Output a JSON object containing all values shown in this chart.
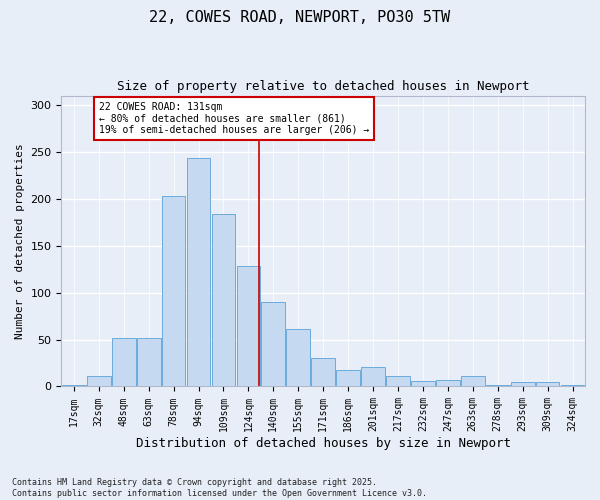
{
  "title": "22, COWES ROAD, NEWPORT, PO30 5TW",
  "subtitle": "Size of property relative to detached houses in Newport",
  "xlabel": "Distribution of detached houses by size in Newport",
  "ylabel": "Number of detached properties",
  "bar_color": "#c5d9f0",
  "bar_edge_color": "#6aabdd",
  "background_color": "#e8eef8",
  "grid_color": "#ffffff",
  "categories": [
    "17sqm",
    "32sqm",
    "48sqm",
    "63sqm",
    "78sqm",
    "94sqm",
    "109sqm",
    "124sqm",
    "140sqm",
    "155sqm",
    "171sqm",
    "186sqm",
    "201sqm",
    "217sqm",
    "232sqm",
    "247sqm",
    "263sqm",
    "278sqm",
    "293sqm",
    "309sqm",
    "324sqm"
  ],
  "bar_heights": [
    2,
    11,
    52,
    52,
    203,
    243,
    184,
    128,
    90,
    61,
    30,
    18,
    21,
    11,
    6,
    7,
    11,
    2,
    5,
    5,
    2
  ],
  "ylim": [
    0,
    310
  ],
  "yticks": [
    0,
    50,
    100,
    150,
    200,
    250,
    300
  ],
  "vline_color": "#cc0000",
  "annotation_text": "22 COWES ROAD: 131sqm\n← 80% of detached houses are smaller (861)\n19% of semi-detached houses are larger (206) →",
  "annotation_box_color": "#ffffff",
  "annotation_box_edge": "#cc0000",
  "footnote": "Contains HM Land Registry data © Crown copyright and database right 2025.\nContains public sector information licensed under the Open Government Licence v3.0.",
  "title_fontsize": 11,
  "subtitle_fontsize": 9,
  "axis_label_fontsize": 8,
  "tick_fontsize": 7,
  "annotation_fontsize": 7,
  "footnote_fontsize": 6
}
